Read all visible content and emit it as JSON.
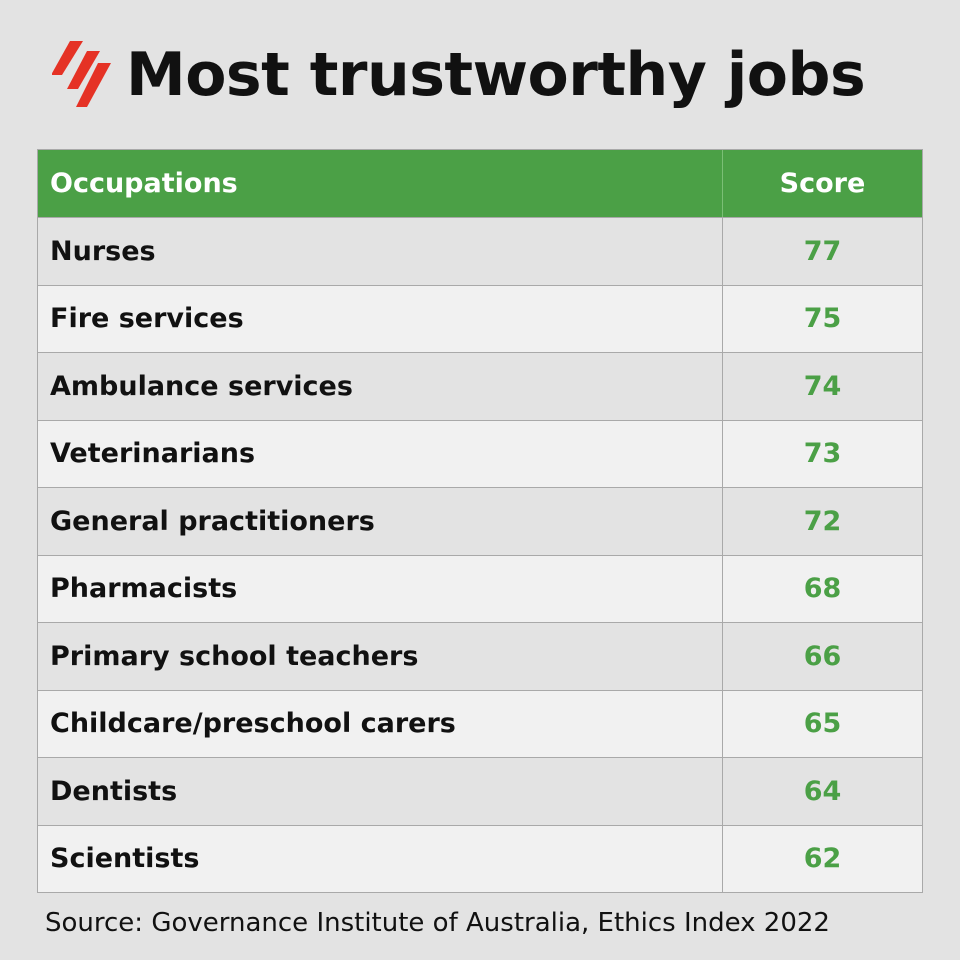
{
  "title": "Most trustworthy jobs",
  "logo_icon": "sbs-logo-icon",
  "colors": {
    "accent": "#4ba046",
    "logo": "#e53225",
    "background": "#e3e3e3"
  },
  "table": {
    "headers": {
      "occupation": "Occupations",
      "score": "Score"
    },
    "rows": [
      {
        "occupation": "Nurses",
        "score": "77"
      },
      {
        "occupation": "Fire services",
        "score": "75"
      },
      {
        "occupation": "Ambulance services",
        "score": "74"
      },
      {
        "occupation": "Veterinarians",
        "score": "73"
      },
      {
        "occupation": "General practitioners",
        "score": "72"
      },
      {
        "occupation": "Pharmacists",
        "score": "68"
      },
      {
        "occupation": "Primary school teachers",
        "score": "66"
      },
      {
        "occupation": "Childcare/preschool carers",
        "score": "65"
      },
      {
        "occupation": "Dentists",
        "score": "64"
      },
      {
        "occupation": "Scientists",
        "score": "62"
      }
    ]
  },
  "source": "Source: Governance Institute of Australia, Ethics Index 2022",
  "chart_data": {
    "type": "table",
    "title": "Most trustworthy jobs",
    "columns": [
      "Occupations",
      "Score"
    ],
    "categories": [
      "Nurses",
      "Fire services",
      "Ambulance services",
      "Veterinarians",
      "General practitioners",
      "Pharmacists",
      "Primary school teachers",
      "Childcare/preschool carers",
      "Dentists",
      "Scientists"
    ],
    "values": [
      77,
      75,
      74,
      73,
      72,
      68,
      66,
      65,
      64,
      62
    ]
  }
}
